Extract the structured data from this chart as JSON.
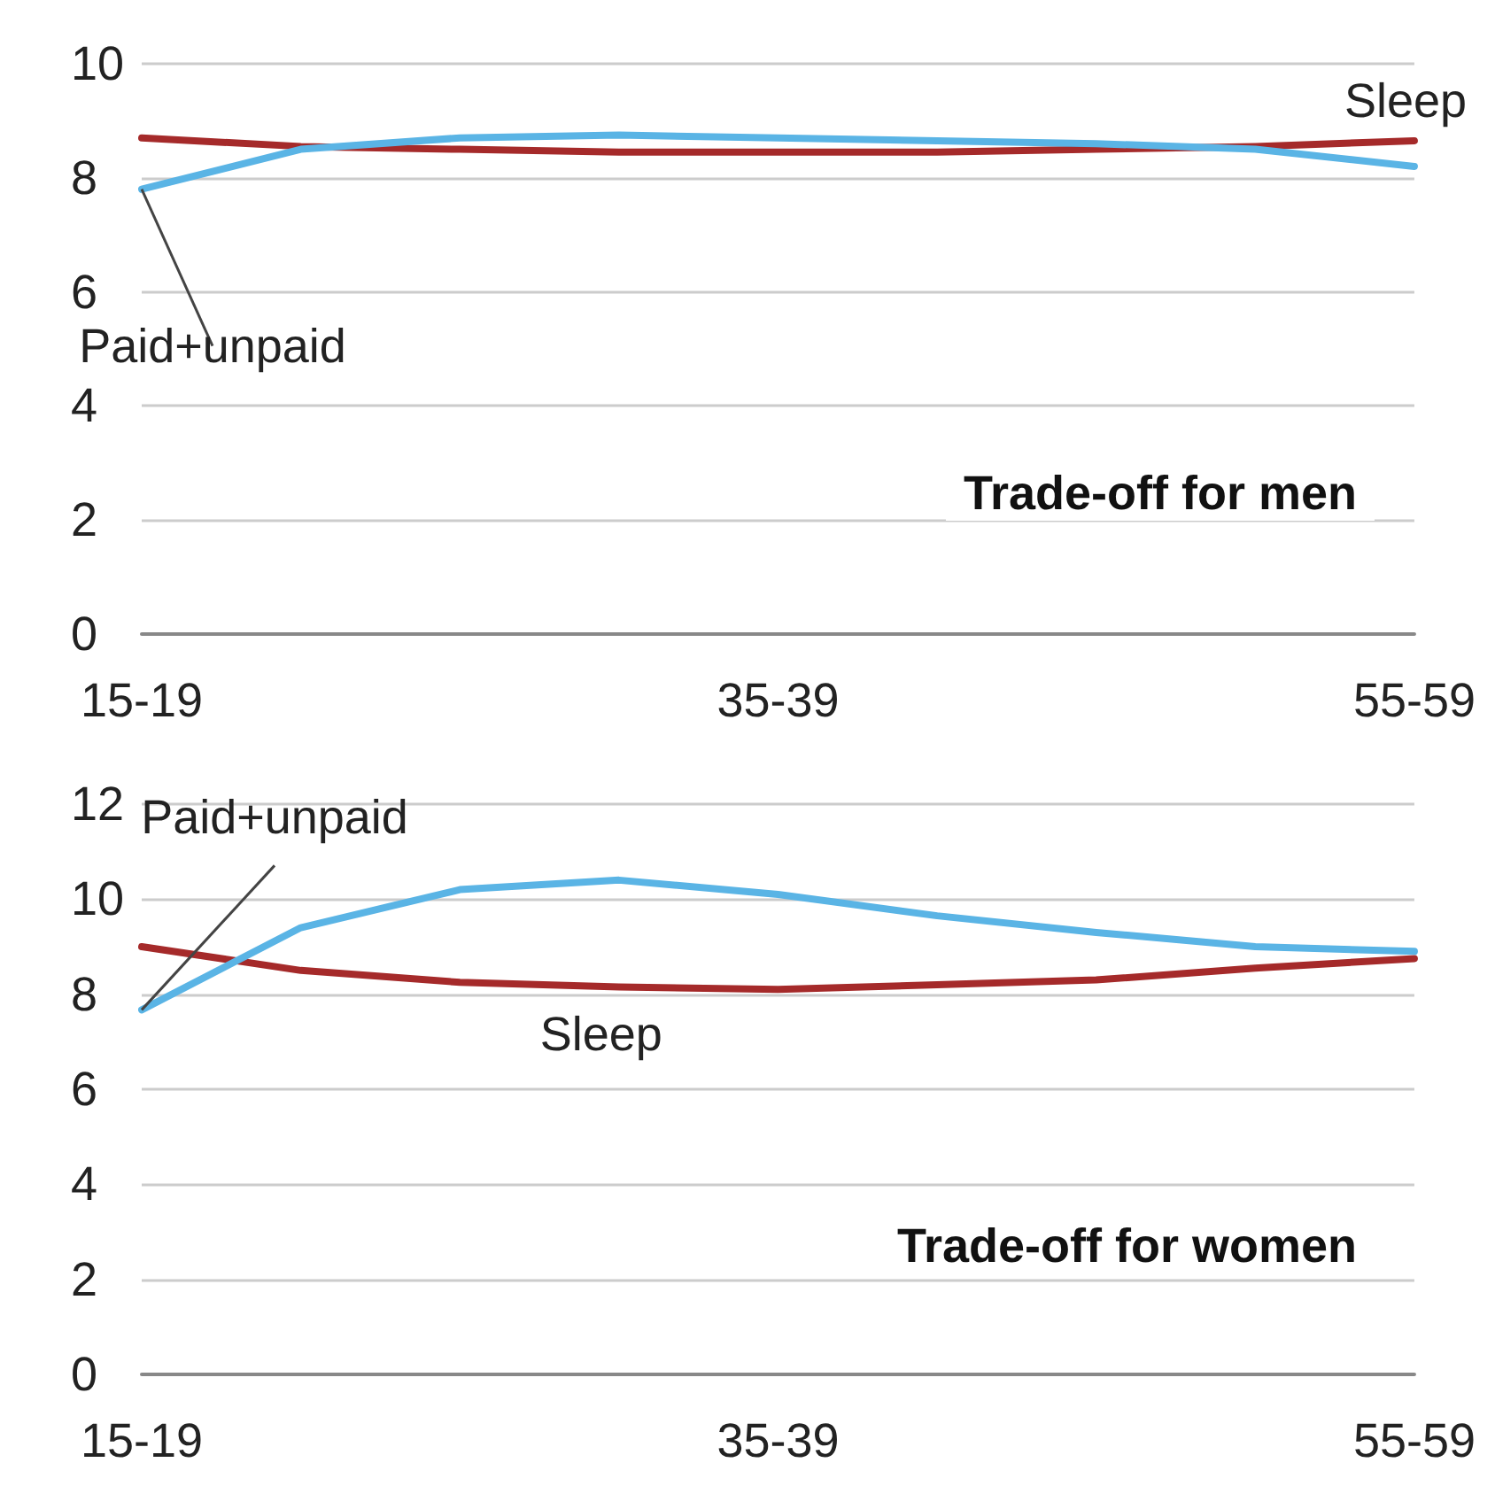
{
  "chart_data": [
    {
      "type": "line",
      "title": "Trade-off for men",
      "categories": [
        "15-19",
        null,
        null,
        null,
        "35-39",
        null,
        null,
        null,
        "55-59"
      ],
      "ylim": [
        0,
        10
      ],
      "yticks": [
        0,
        2,
        4,
        6,
        8,
        10
      ],
      "grid": "y",
      "legend": false,
      "marker": "none",
      "line_style": "solid",
      "series": [
        {
          "name": "Paid+unpaid",
          "color": "#5ab4e5",
          "values": [
            7.8,
            8.5,
            8.7,
            8.75,
            8.7,
            8.65,
            8.6,
            8.5,
            8.2
          ]
        },
        {
          "name": "Sleep",
          "color": "#a52a2a",
          "values": [
            8.7,
            8.55,
            8.5,
            8.45,
            8.45,
            8.45,
            8.5,
            8.55,
            8.65
          ]
        }
      ]
    },
    {
      "type": "line",
      "title": "Trade-off for women",
      "categories": [
        "15-19",
        null,
        null,
        null,
        "35-39",
        null,
        null,
        null,
        "55-59"
      ],
      "ylim": [
        0,
        12
      ],
      "yticks": [
        0,
        2,
        4,
        6,
        8,
        10,
        12
      ],
      "grid": "y",
      "legend": false,
      "marker": "none",
      "line_style": "solid",
      "series": [
        {
          "name": "Paid+unpaid",
          "color": "#5ab4e5",
          "values": [
            7.67,
            9.4,
            10.2,
            10.4,
            10.1,
            9.65,
            9.3,
            9.0,
            8.9
          ]
        },
        {
          "name": "Sleep",
          "color": "#a52a2a",
          "values": [
            9.0,
            8.5,
            8.25,
            8.15,
            8.1,
            8.2,
            8.3,
            8.55,
            8.75
          ]
        }
      ]
    }
  ]
}
